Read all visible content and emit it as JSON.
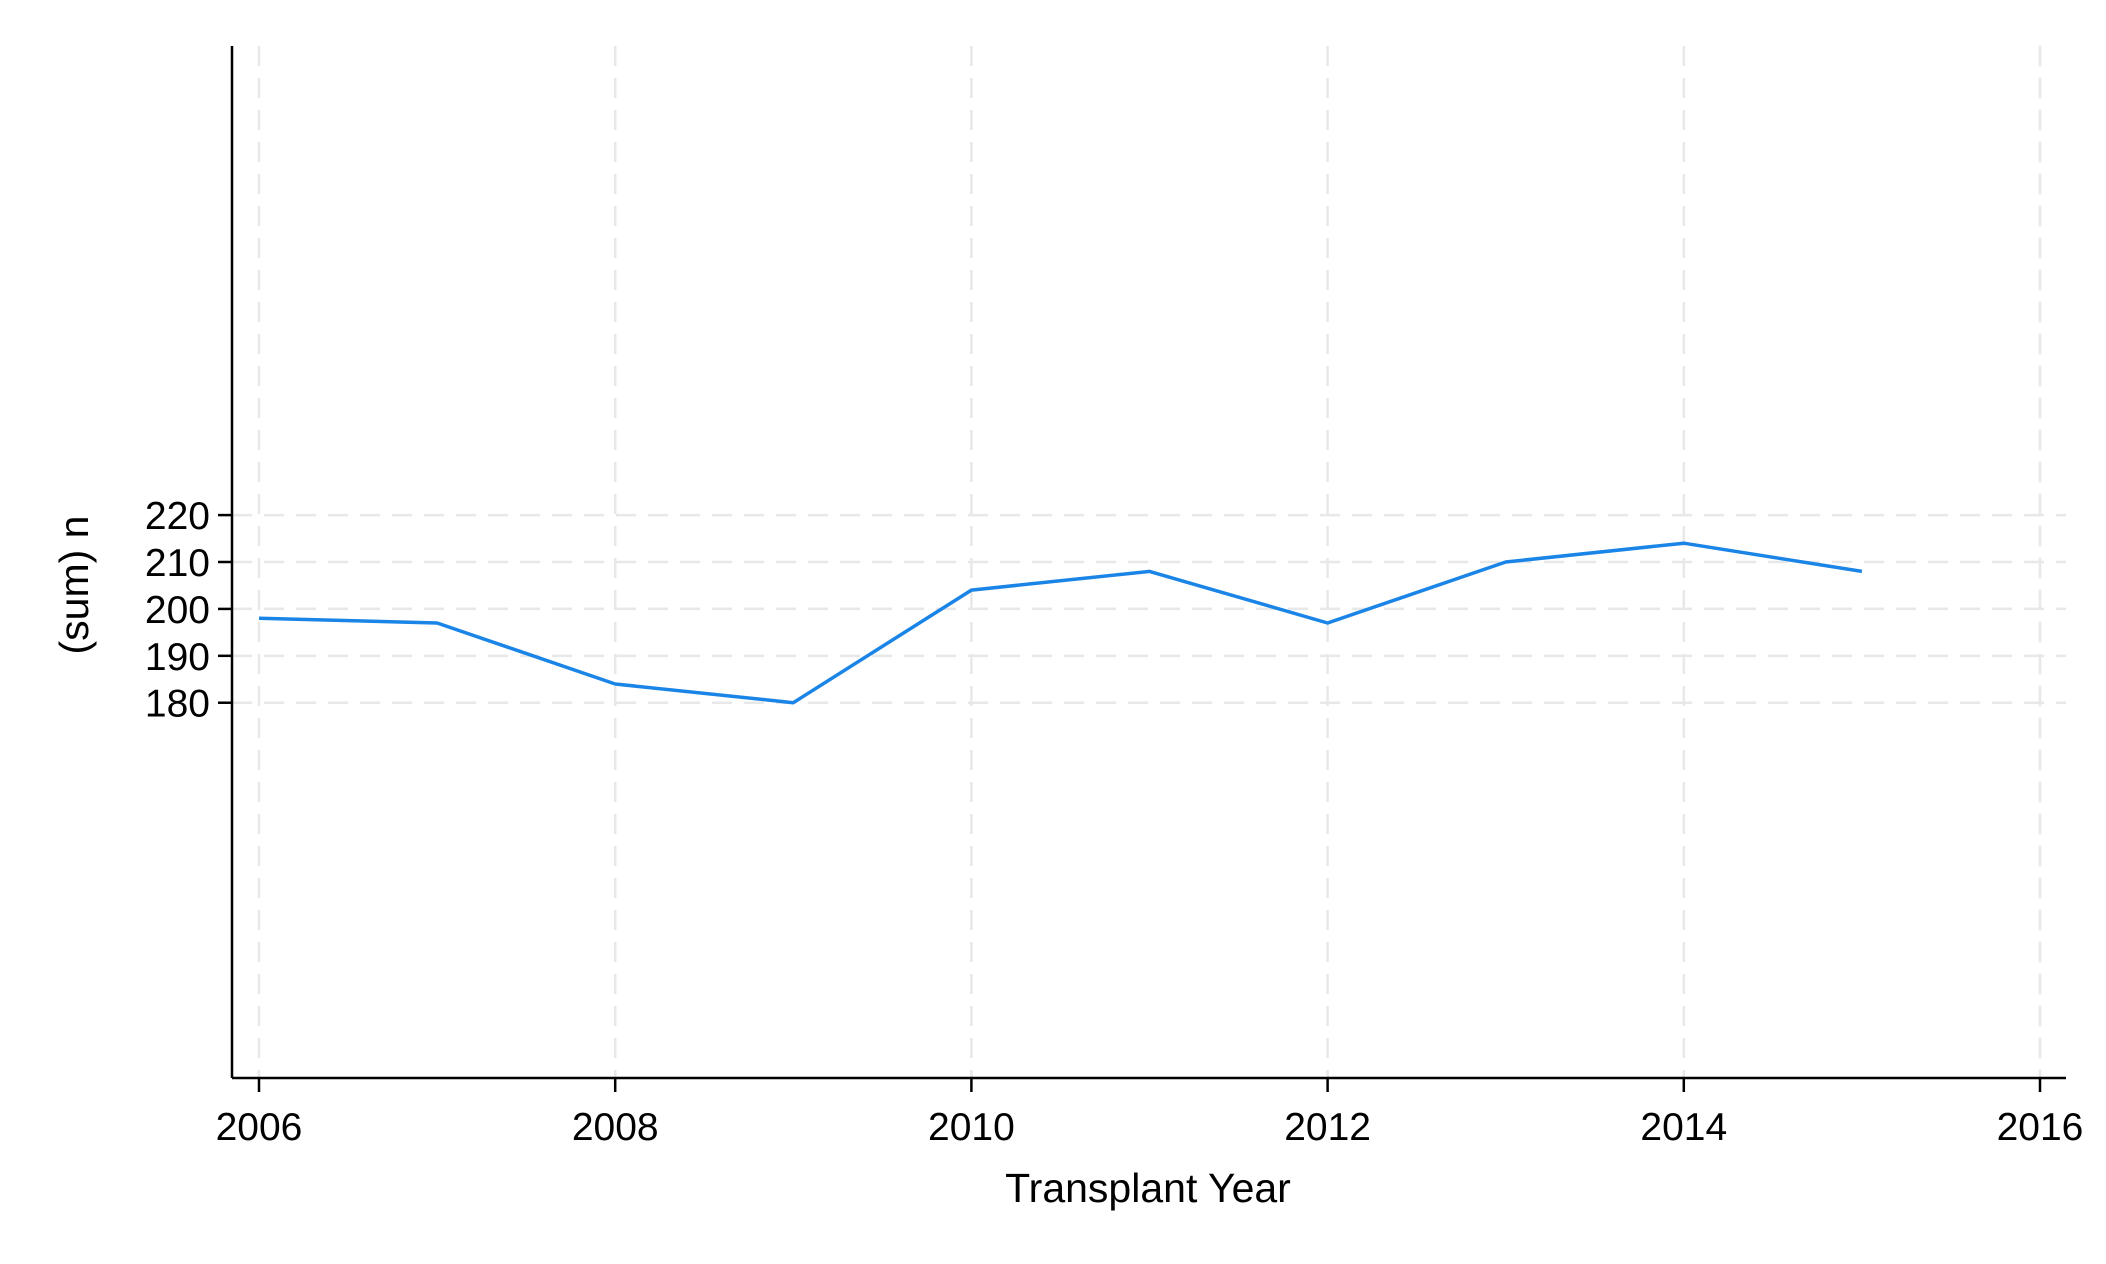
{
  "chart_data": {
    "type": "line",
    "title": "",
    "xlabel": "Transplant Year",
    "ylabel": "(sum) n",
    "xlim": [
      2006,
      2016
    ],
    "ylim": [
      100,
      320
    ],
    "x_ticks": [
      2006,
      2008,
      2010,
      2012,
      2014,
      2016
    ],
    "x_tick_labels": [
      "2006",
      "2008",
      "2010",
      "2012",
      "2014",
      "2016"
    ],
    "y_ticks": [
      180,
      190,
      200,
      210,
      220
    ],
    "y_tick_labels": [
      "180",
      "190",
      "200",
      "210",
      "220"
    ],
    "grid": true,
    "legend": "none",
    "colors": {
      "line": "#1a85e6",
      "grid": "#e8e8e8",
      "axis": "#000000"
    },
    "series": [
      {
        "x": [
          2006,
          2007,
          2008,
          2009,
          2010,
          2011,
          2012,
          2013,
          2014,
          2015
        ],
        "values": [
          198,
          197,
          184,
          180,
          204,
          208,
          197,
          210,
          214,
          208
        ]
      }
    ]
  }
}
